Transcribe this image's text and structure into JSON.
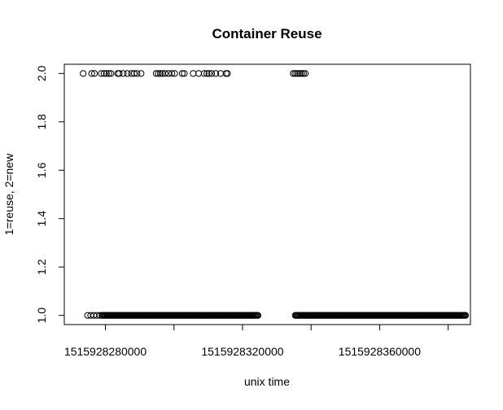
{
  "chart_data": {
    "type": "scatter",
    "title": "Container Reuse",
    "xlabel": "unix time",
    "ylabel": "1=reuse, 2=new",
    "xlim": [
      1515928268000,
      1515928386500
    ],
    "ylim": [
      0.962,
      2.038
    ],
    "x_ticks": [
      1515928280000,
      1515928300000,
      1515928320000,
      1515928340000,
      1515928360000,
      1515928380000
    ],
    "x_tick_labels": [
      "1515928280000",
      "",
      "1515928320000",
      "",
      "1515928360000",
      ""
    ],
    "y_ticks": [
      1.0,
      1.2,
      1.4,
      1.6,
      1.8,
      2.0
    ],
    "y_tick_labels": [
      "1.0",
      "1.2",
      "1.4",
      "1.6",
      "1.8",
      "2.0"
    ],
    "grid": false,
    "marker": "open-circle",
    "series": [
      {
        "y": 2,
        "x": [
          1515928273500,
          1515928276000,
          1515928276800,
          1515928278800,
          1515928279600,
          1515928280300,
          1515928281000,
          1515928281600,
          1515928283600,
          1515928284000,
          1515928285200,
          1515928286400,
          1515928287600,
          1515928288400,
          1515928289200,
          1515928290400,
          1515928294800,
          1515928295400,
          1515928296000,
          1515928296600,
          1515928297400,
          1515928298400,
          1515928299400,
          1515928300200,
          1515928302400,
          1515928303000,
          1515928305600,
          1515928307200,
          1515928308800,
          1515928309600,
          1515928310200,
          1515928311000,
          1515928312200,
          1515928313600,
          1515928315200,
          1515928315600,
          1515928334800,
          1515928335300,
          1515928335800,
          1515928336300,
          1515928336800,
          1515928337300,
          1515928337800,
          1515928338300
        ]
      },
      {
        "y": 1,
        "x_runs": [
          {
            "start": 1515928274800,
            "end": 1515928278400,
            "step": 900
          },
          {
            "start": 1515928279000,
            "end": 1515928324500,
            "step": 260
          },
          {
            "start": 1515928335400,
            "end": 1515928385200,
            "step": 260
          }
        ]
      }
    ]
  }
}
